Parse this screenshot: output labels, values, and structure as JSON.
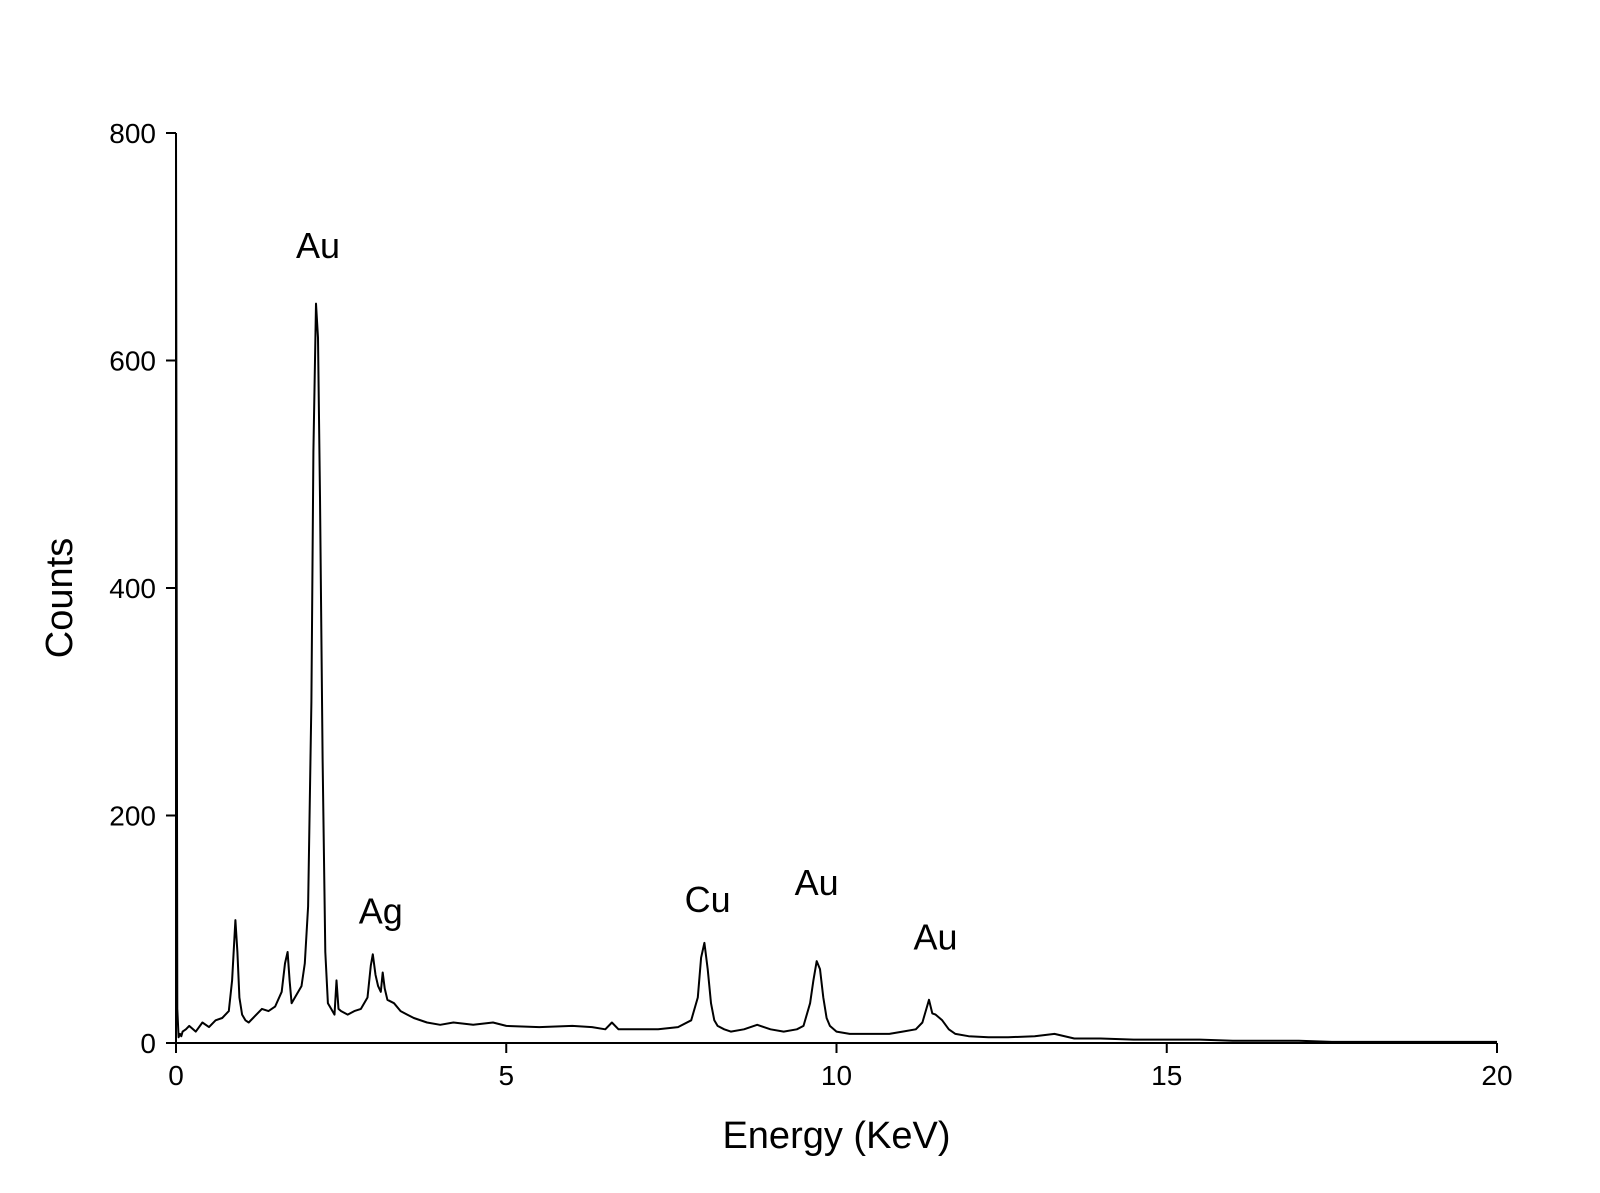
{
  "chart_data": {
    "type": "line",
    "xlabel": "Energy (KeV)",
    "ylabel": "Counts",
    "xlim": [
      0,
      20
    ],
    "ylim": [
      0,
      800
    ],
    "x_ticks": [
      0,
      5,
      10,
      15,
      20
    ],
    "x_tick_labels": [
      "0",
      "5",
      "10",
      "15",
      "20"
    ],
    "y_ticks": [
      0,
      200,
      400,
      600,
      800
    ],
    "y_tick_labels": [
      "0",
      "200",
      "400",
      "600",
      "800"
    ],
    "grid": false,
    "line_color": "#000000",
    "series": [
      {
        "x": [
          0.0,
          0.02,
          0.04,
          0.06,
          0.08,
          0.1,
          0.15,
          0.2,
          0.3,
          0.4,
          0.5,
          0.6,
          0.7,
          0.8,
          0.85,
          0.9,
          0.93,
          0.96,
          1.0,
          1.05,
          1.1,
          1.2,
          1.3,
          1.4,
          1.5,
          1.6,
          1.65,
          1.69,
          1.72,
          1.75,
          1.8,
          1.9,
          1.95,
          2.0,
          2.05,
          2.08,
          2.12,
          2.15,
          2.18,
          2.22,
          2.26,
          2.3,
          2.35,
          2.4,
          2.43,
          2.46,
          2.5,
          2.6,
          2.7,
          2.8,
          2.9,
          2.95,
          2.98,
          3.02,
          3.06,
          3.1,
          3.13,
          3.16,
          3.2,
          3.3,
          3.4,
          3.5,
          3.6,
          3.8,
          4.0,
          4.2,
          4.5,
          4.8,
          5.0,
          5.5,
          6.0,
          6.3,
          6.5,
          6.6,
          6.7,
          7.0,
          7.3,
          7.6,
          7.8,
          7.9,
          7.95,
          8.0,
          8.05,
          8.1,
          8.15,
          8.2,
          8.3,
          8.4,
          8.6,
          8.8,
          8.9,
          9.0,
          9.2,
          9.4,
          9.5,
          9.6,
          9.65,
          9.7,
          9.75,
          9.8,
          9.85,
          9.9,
          10.0,
          10.2,
          10.5,
          10.8,
          11.0,
          11.2,
          11.3,
          11.35,
          11.4,
          11.45,
          11.5,
          11.6,
          11.7,
          11.8,
          12.0,
          12.3,
          12.6,
          13.0,
          13.3,
          13.6,
          14.0,
          14.5,
          15.0,
          15.5,
          16.0,
          16.5,
          17.0,
          17.5,
          18.0,
          18.5,
          19.0,
          19.5,
          20.0
        ],
        "y": [
          800,
          30,
          5,
          8,
          6,
          10,
          12,
          15,
          10,
          18,
          14,
          20,
          22,
          28,
          55,
          108,
          80,
          40,
          25,
          20,
          18,
          24,
          30,
          28,
          32,
          45,
          70,
          80,
          55,
          35,
          40,
          50,
          70,
          120,
          300,
          520,
          650,
          620,
          480,
          250,
          80,
          35,
          30,
          25,
          55,
          30,
          28,
          25,
          28,
          30,
          40,
          68,
          78,
          60,
          50,
          45,
          62,
          48,
          38,
          35,
          28,
          25,
          22,
          18,
          16,
          18,
          16,
          18,
          15,
          14,
          15,
          14,
          12,
          18,
          12,
          12,
          12,
          14,
          20,
          40,
          75,
          88,
          65,
          35,
          20,
          15,
          12,
          10,
          12,
          16,
          14,
          12,
          10,
          12,
          15,
          35,
          55,
          72,
          65,
          40,
          22,
          15,
          10,
          8,
          8,
          8,
          10,
          12,
          18,
          28,
          38,
          26,
          25,
          20,
          12,
          8,
          6,
          5,
          5,
          6,
          8,
          4,
          4,
          3,
          3,
          3,
          2,
          2,
          2,
          1,
          1,
          1,
          1,
          1,
          1
        ]
      }
    ],
    "annotations": [
      {
        "text": "Au",
        "x": 2.15,
        "y": 690
      },
      {
        "text": "Ag",
        "x": 3.1,
        "y": 105
      },
      {
        "text": "Cu",
        "x": 8.05,
        "y": 115
      },
      {
        "text": "Au",
        "x": 9.7,
        "y": 130
      },
      {
        "text": "Au",
        "x": 11.5,
        "y": 82
      }
    ]
  }
}
